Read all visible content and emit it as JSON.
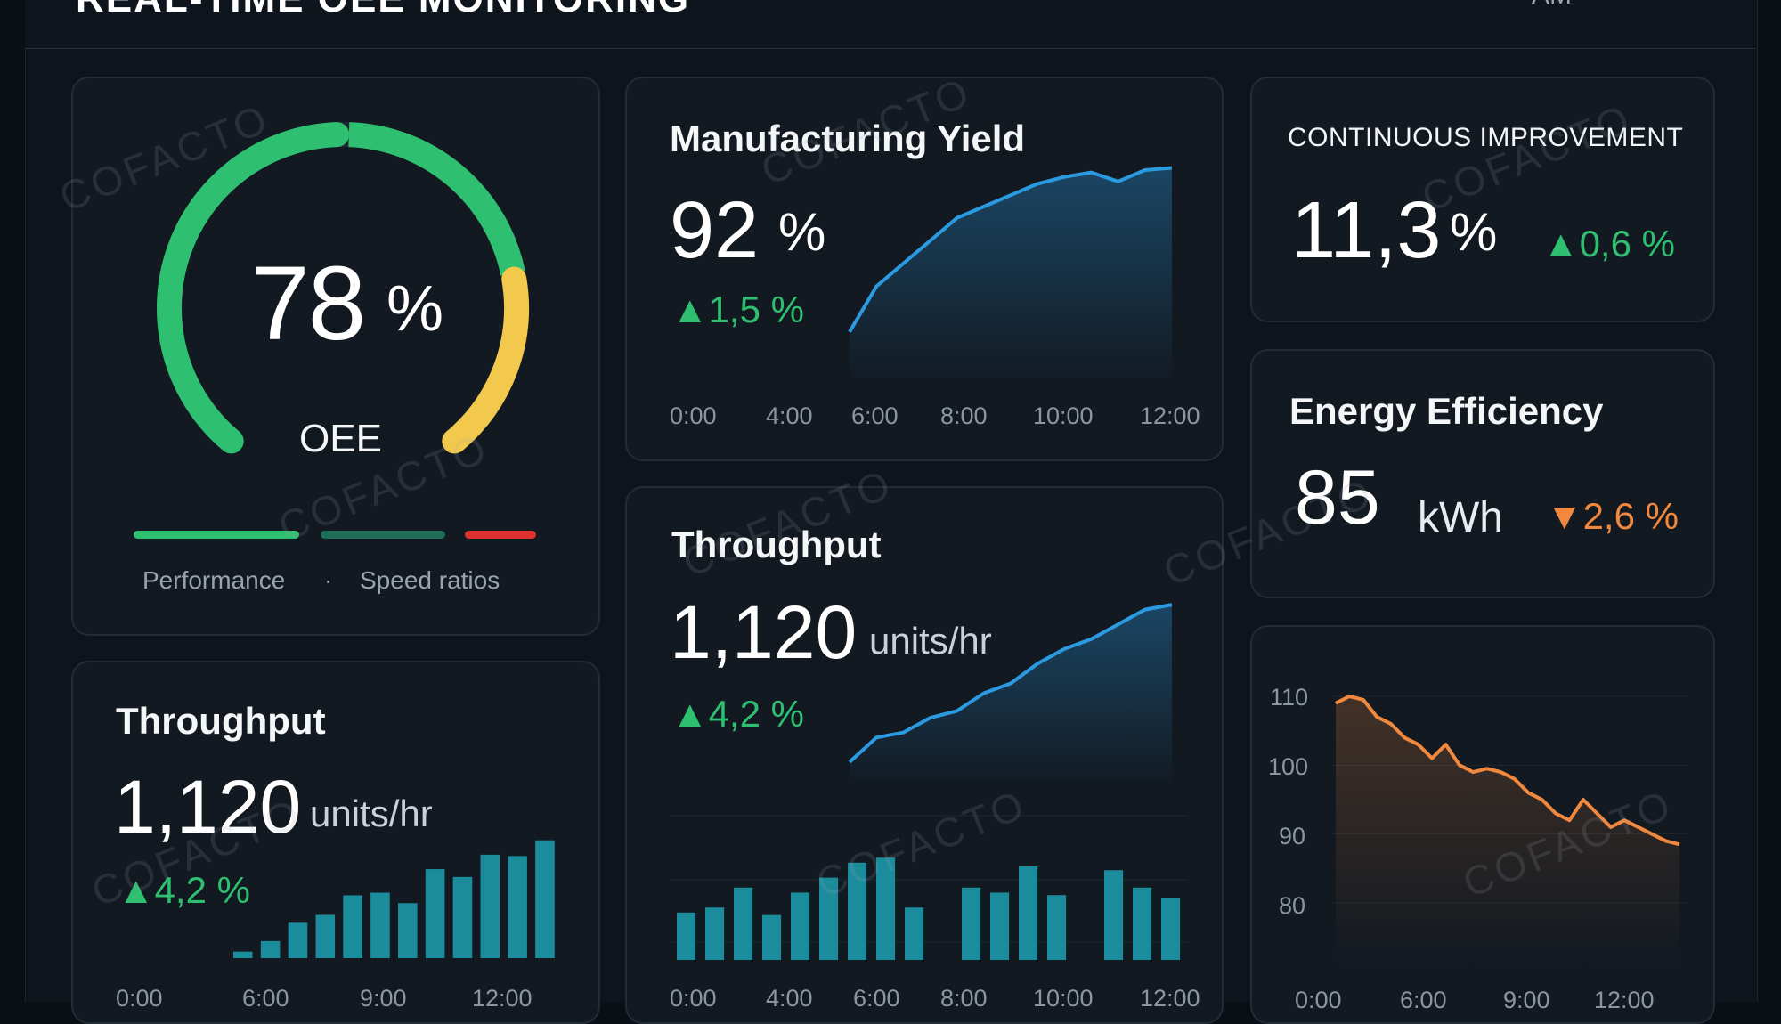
{
  "header": {
    "title": "REAL-TIME OEE MONITORING",
    "right_text": "AM"
  },
  "oee": {
    "value": "78",
    "unit": "%",
    "label": "OEE",
    "gauge_fraction": 0.78,
    "legend_left": "Performance",
    "legend_sep": "·",
    "legend_right": "Speed  ratios"
  },
  "yield": {
    "title": "Manufacturing Yield",
    "value": "92",
    "unit": "%",
    "delta": "1,5 %",
    "delta_dir": "up",
    "ticks": [
      "0:00",
      "4:00",
      "6:00",
      "8:00",
      "10:00",
      "12:00"
    ]
  },
  "ci": {
    "title": "CONTINUOUS IMPROVEMENT",
    "value": "11,3",
    "unit": "%",
    "delta": "0,6 %",
    "delta_dir": "up"
  },
  "energy": {
    "title": "Energy Efficiency",
    "value": "85",
    "unit": "kWh",
    "delta": "2,6 %",
    "delta_dir": "down"
  },
  "throughput_mid": {
    "title": "Throughput",
    "value": "1,120",
    "unit": "units/hr",
    "delta": "4,2 %",
    "ticks": [
      "0:00",
      "4:00",
      "6:00",
      "8:00",
      "10:00",
      "12:00"
    ]
  },
  "throughput_left": {
    "title": "Throughput",
    "value": "1,120",
    "unit": "units/hr",
    "delta": "4,2 %",
    "ticks": [
      "0:00",
      "6:00",
      "9:00",
      "12:00"
    ]
  },
  "energy_chart": {
    "y_ticks": [
      "110",
      "100",
      "90",
      "80"
    ],
    "x_ticks": [
      "0:00",
      "6:00",
      "9:00",
      "12:00"
    ]
  },
  "watermark": "COFACTO",
  "colors": {
    "green": "#2fbf71",
    "blue": "#2b9ae0",
    "teal": "#1a8c9c",
    "orange": "#f0883e",
    "yellow": "#f2c94c",
    "red": "#e03131"
  },
  "chart_data": [
    {
      "type": "area",
      "title": "Manufacturing Yield",
      "x": [
        6,
        6.5,
        7,
        7.5,
        8,
        8.5,
        9,
        9.5,
        10,
        10.5,
        11,
        11.5,
        12
      ],
      "values": [
        86,
        88,
        89,
        90,
        91,
        91.5,
        92,
        92.5,
        92.8,
        93,
        92.6,
        93.1,
        93.2
      ],
      "ylim": [
        84,
        94
      ],
      "xlim": [
        6,
        12.3
      ],
      "x_ticks": [
        "0:00",
        "4:00",
        "6:00",
        "8:00",
        "10:00",
        "12:00"
      ]
    },
    {
      "type": "area",
      "title": "Throughput",
      "x": [
        6,
        6.5,
        7,
        7.5,
        8,
        8.5,
        9,
        9.5,
        10,
        10.5,
        11,
        11.5,
        12
      ],
      "values": [
        960,
        985,
        990,
        1005,
        1012,
        1030,
        1040,
        1060,
        1075,
        1085,
        1100,
        1115,
        1120
      ],
      "ylim": [
        940,
        1130
      ],
      "xlim": [
        6,
        12.3
      ],
      "x_ticks": [
        "0:00",
        "4:00",
        "6:00",
        "8:00",
        "10:00",
        "12:00"
      ]
    },
    {
      "type": "bar",
      "title": "Throughput",
      "categories": [
        "1",
        "2",
        "3",
        "4",
        "5",
        "6",
        "7",
        "8",
        "9",
        "10",
        "11",
        "12",
        "13",
        "14",
        "15",
        "16",
        "17",
        "18"
      ],
      "values": [
        38,
        42,
        58,
        36,
        54,
        66,
        78,
        82,
        42,
        0,
        58,
        54,
        75,
        52,
        0,
        72,
        58,
        50
      ],
      "ylim": [
        0,
        100
      ]
    },
    {
      "type": "bar",
      "title": "Throughput",
      "categories": [
        "1",
        "2",
        "3",
        "4",
        "5",
        "6",
        "7",
        "8",
        "9",
        "10",
        "11",
        "12"
      ],
      "values": [
        5,
        13,
        27,
        33,
        48,
        50,
        42,
        68,
        62,
        79,
        78,
        90
      ],
      "ylim": [
        0,
        100
      ],
      "x_ticks": [
        "0:00",
        "6:00",
        "9:00",
        "12:00"
      ]
    },
    {
      "type": "line",
      "x": [
        0,
        0.5,
        1,
        1.5,
        2,
        2.5,
        3,
        3.5,
        4,
        4.5,
        5,
        5.5,
        6,
        6.5,
        7,
        7.5,
        8,
        8.5,
        9,
        9.5,
        10,
        10.5,
        11,
        11.5,
        12,
        12.5
      ],
      "values": [
        109,
        110,
        109.5,
        107,
        106,
        104,
        103,
        101,
        103,
        100,
        99,
        99.5,
        99,
        98,
        96,
        95,
        93,
        92,
        95,
        93,
        91,
        92,
        91,
        90,
        89,
        88.5
      ],
      "ylim": [
        77,
        113
      ],
      "y_ticks": [
        "110",
        "100",
        "90",
        "80"
      ],
      "x_ticks": [
        "0:00",
        "6:00",
        "9:00",
        "12:00"
      ]
    }
  ]
}
